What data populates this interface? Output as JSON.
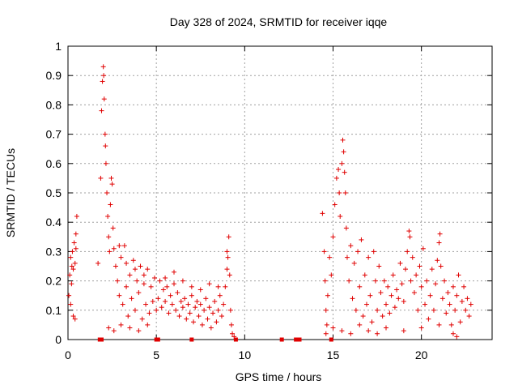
{
  "chart_data": {
    "type": "scatter",
    "title": "Day 328 of 2024, SRMTID for receiver iqqe",
    "xlabel": "GPS time / hours",
    "ylabel": "SRMTID / TECUs",
    "xlim": [
      0,
      24
    ],
    "ylim": [
      0,
      1
    ],
    "xticks": [
      0,
      5,
      10,
      15,
      20
    ],
    "xtick_labels": [
      "0",
      "5",
      "10",
      "15",
      "20"
    ],
    "yticks": [
      0,
      0.1,
      0.2,
      0.3,
      0.4,
      0.5,
      0.6,
      0.7,
      0.8,
      0.9,
      1
    ],
    "ytick_labels": [
      "0",
      "0.1",
      "0.2",
      "0.3",
      "0.4",
      "0.5",
      "0.6",
      "0.7",
      "0.8",
      "0.9",
      "1"
    ],
    "grid": true,
    "marker": "+",
    "marker_color": "#e00000",
    "series": [
      {
        "name": "SRMTID",
        "points": [
          [
            0.05,
            0.15
          ],
          [
            0.1,
            0.22
          ],
          [
            0.15,
            0.28
          ],
          [
            0.2,
            0.19
          ],
          [
            0.25,
            0.3
          ],
          [
            0.3,
            0.24
          ],
          [
            0.35,
            0.33
          ],
          [
            0.4,
            0.26
          ],
          [
            0.45,
            0.36
          ],
          [
            0.5,
            0.42
          ],
          [
            0.3,
            0.08
          ],
          [
            0.4,
            0.07
          ],
          [
            0.15,
            0.12
          ],
          [
            0.22,
            0.25
          ],
          [
            0.45,
            0.31
          ],
          [
            1.7,
            0.26
          ],
          [
            1.85,
            0.55
          ],
          [
            1.9,
            0.78
          ],
          [
            1.95,
            0.88
          ],
          [
            2.0,
            0.93
          ],
          [
            2.02,
            0.9
          ],
          [
            2.05,
            0.82
          ],
          [
            2.1,
            0.7
          ],
          [
            2.12,
            0.66
          ],
          [
            2.15,
            0.6
          ],
          [
            2.2,
            0.5
          ],
          [
            2.25,
            0.42
          ],
          [
            2.3,
            0.35
          ],
          [
            2.35,
            0.3
          ],
          [
            2.4,
            0.46
          ],
          [
            2.45,
            0.55
          ],
          [
            2.5,
            0.53
          ],
          [
            2.55,
            0.38
          ],
          [
            2.6,
            0.31
          ],
          [
            2.7,
            0.25
          ],
          [
            2.8,
            0.2
          ],
          [
            2.9,
            0.15
          ],
          [
            3.0,
            0.28
          ],
          [
            3.1,
            0.12
          ],
          [
            3.2,
            0.32
          ],
          [
            3.3,
            0.18
          ],
          [
            3.4,
            0.08
          ],
          [
            3.5,
            0.22
          ],
          [
            3.6,
            0.14
          ],
          [
            3.7,
            0.27
          ],
          [
            3.8,
            0.1
          ],
          [
            3.9,
            0.2
          ],
          [
            4.0,
            0.16
          ],
          [
            4.1,
            0.25
          ],
          [
            4.2,
            0.07
          ],
          [
            4.3,
            0.19
          ],
          [
            4.4,
            0.12
          ],
          [
            4.5,
            0.24
          ],
          [
            4.6,
            0.09
          ],
          [
            4.7,
            0.18
          ],
          [
            4.8,
            0.13
          ],
          [
            4.9,
            0.21
          ],
          [
            5.0,
            0.1
          ],
          [
            2.3,
            0.04
          ],
          [
            2.6,
            0.03
          ],
          [
            3.0,
            0.05
          ],
          [
            3.5,
            0.04
          ],
          [
            4.0,
            0.03
          ],
          [
            4.5,
            0.05
          ],
          [
            2.9,
            0.32
          ],
          [
            3.3,
            0.26
          ],
          [
            3.8,
            0.24
          ],
          [
            4.3,
            0.22
          ],
          [
            5.1,
            0.14
          ],
          [
            5.2,
            0.2
          ],
          [
            5.3,
            0.11
          ],
          [
            5.4,
            0.17
          ],
          [
            5.5,
            0.13
          ],
          [
            5.6,
            0.18
          ],
          [
            5.7,
            0.09
          ],
          [
            5.8,
            0.15
          ],
          [
            5.9,
            0.12
          ],
          [
            6.0,
            0.19
          ],
          [
            6.1,
            0.1
          ],
          [
            6.2,
            0.16
          ],
          [
            6.3,
            0.08
          ],
          [
            6.4,
            0.13
          ],
          [
            6.5,
            0.11
          ],
          [
            6.6,
            0.14
          ],
          [
            6.7,
            0.07
          ],
          [
            6.8,
            0.12
          ],
          [
            6.9,
            0.09
          ],
          [
            7.0,
            0.15
          ],
          [
            7.1,
            0.06
          ],
          [
            7.2,
            0.11
          ],
          [
            7.3,
            0.13
          ],
          [
            7.4,
            0.08
          ],
          [
            7.5,
            0.12
          ],
          [
            7.6,
            0.05
          ],
          [
            7.7,
            0.1
          ],
          [
            7.8,
            0.14
          ],
          [
            7.9,
            0.07
          ],
          [
            8.0,
            0.11
          ],
          [
            8.1,
            0.04
          ],
          [
            8.2,
            0.09
          ],
          [
            8.3,
            0.13
          ],
          [
            8.4,
            0.06
          ],
          [
            8.5,
            0.1
          ],
          [
            8.6,
            0.15
          ],
          [
            8.7,
            0.08
          ],
          [
            8.8,
            0.12
          ],
          [
            8.9,
            0.18
          ],
          [
            9.0,
            0.24
          ],
          [
            9.05,
            0.28
          ],
          [
            9.1,
            0.35
          ],
          [
            9.15,
            0.22
          ],
          [
            9.2,
            0.1
          ],
          [
            9.25,
            0.05
          ],
          [
            9.3,
            0.02
          ],
          [
            9.4,
            0.01
          ],
          [
            5.5,
            0.21
          ],
          [
            6.0,
            0.23
          ],
          [
            6.5,
            0.2
          ],
          [
            7.0,
            0.18
          ],
          [
            7.5,
            0.17
          ],
          [
            8.0,
            0.19
          ],
          [
            8.5,
            0.18
          ],
          [
            9.0,
            0.3
          ],
          [
            14.4,
            0.43
          ],
          [
            14.5,
            0.3
          ],
          [
            14.55,
            0.2
          ],
          [
            14.6,
            0.1
          ],
          [
            14.65,
            0.05
          ],
          [
            14.7,
            0.15
          ],
          [
            14.8,
            0.28
          ],
          [
            14.9,
            0.22
          ],
          [
            15.0,
            0.35
          ],
          [
            15.1,
            0.46
          ],
          [
            15.2,
            0.55
          ],
          [
            15.3,
            0.58
          ],
          [
            15.35,
            0.5
          ],
          [
            15.4,
            0.42
          ],
          [
            15.5,
            0.6
          ],
          [
            15.55,
            0.68
          ],
          [
            15.6,
            0.64
          ],
          [
            15.65,
            0.57
          ],
          [
            15.7,
            0.5
          ],
          [
            15.75,
            0.38
          ],
          [
            15.8,
            0.28
          ],
          [
            15.9,
            0.2
          ],
          [
            16.0,
            0.32
          ],
          [
            16.1,
            0.14
          ],
          [
            16.2,
            0.26
          ],
          [
            16.3,
            0.1
          ],
          [
            16.4,
            0.3
          ],
          [
            16.5,
            0.18
          ],
          [
            16.6,
            0.34
          ],
          [
            16.7,
            0.08
          ],
          [
            16.8,
            0.22
          ],
          [
            16.9,
            0.12
          ],
          [
            17.0,
            0.28
          ],
          [
            17.1,
            0.15
          ],
          [
            17.2,
            0.06
          ],
          [
            17.3,
            0.3
          ],
          [
            17.4,
            0.2
          ],
          [
            17.5,
            0.1
          ],
          [
            17.6,
            0.25
          ],
          [
            17.7,
            0.16
          ],
          [
            17.8,
            0.08
          ],
          [
            17.9,
            0.2
          ],
          [
            18.0,
            0.12
          ],
          [
            18.1,
            0.18
          ],
          [
            18.2,
            0.09
          ],
          [
            18.3,
            0.15
          ],
          [
            18.4,
            0.22
          ],
          [
            18.5,
            0.11
          ],
          [
            18.6,
            0.17
          ],
          [
            18.7,
            0.14
          ],
          [
            18.8,
            0.26
          ],
          [
            18.9,
            0.19
          ],
          [
            19.0,
            0.13
          ],
          [
            19.1,
            0.24
          ],
          [
            19.2,
            0.3
          ],
          [
            19.3,
            0.37
          ],
          [
            19.35,
            0.35
          ],
          [
            19.4,
            0.2
          ],
          [
            19.5,
            0.28
          ],
          [
            19.6,
            0.16
          ],
          [
            19.7,
            0.22
          ],
          [
            19.8,
            0.1
          ],
          [
            19.9,
            0.25
          ],
          [
            20.0,
            0.18
          ],
          [
            20.1,
            0.31
          ],
          [
            20.2,
            0.12
          ],
          [
            20.3,
            0.2
          ],
          [
            20.4,
            0.07
          ],
          [
            20.5,
            0.15
          ],
          [
            20.6,
            0.24
          ],
          [
            20.7,
            0.1
          ],
          [
            20.8,
            0.19
          ],
          [
            20.9,
            0.27
          ],
          [
            21.0,
            0.33
          ],
          [
            21.05,
            0.36
          ],
          [
            21.1,
            0.25
          ],
          [
            21.2,
            0.14
          ],
          [
            21.3,
            0.2
          ],
          [
            21.4,
            0.09
          ],
          [
            21.5,
            0.16
          ],
          [
            21.6,
            0.12
          ],
          [
            21.7,
            0.05
          ],
          [
            21.8,
            0.18
          ],
          [
            21.9,
            0.1
          ],
          [
            22.0,
            0.15
          ],
          [
            22.1,
            0.22
          ],
          [
            22.2,
            0.06
          ],
          [
            22.3,
            0.13
          ],
          [
            22.4,
            0.18
          ],
          [
            22.5,
            0.1
          ],
          [
            22.6,
            0.14
          ],
          [
            22.7,
            0.08
          ],
          [
            22.8,
            0.12
          ],
          [
            14.6,
            0.02
          ],
          [
            15.0,
            0.04
          ],
          [
            15.5,
            0.03
          ],
          [
            16.0,
            0.02
          ],
          [
            16.5,
            0.05
          ],
          [
            17.0,
            0.03
          ],
          [
            17.5,
            0.02
          ],
          [
            18.0,
            0.04
          ],
          [
            19.0,
            0.03
          ],
          [
            20.0,
            0.04
          ],
          [
            21.0,
            0.05
          ],
          [
            21.8,
            0.02
          ],
          [
            22.0,
            0.01
          ]
        ]
      }
    ],
    "baseline_points": [
      [
        1.8,
        0
      ],
      [
        1.9,
        0
      ],
      [
        5.0,
        0
      ],
      [
        5.1,
        0
      ],
      [
        7.0,
        0
      ],
      [
        9.5,
        0
      ],
      [
        12.1,
        0
      ],
      [
        12.9,
        0
      ],
      [
        13.0,
        0
      ],
      [
        13.1,
        0
      ],
      [
        14.9,
        0
      ]
    ]
  }
}
